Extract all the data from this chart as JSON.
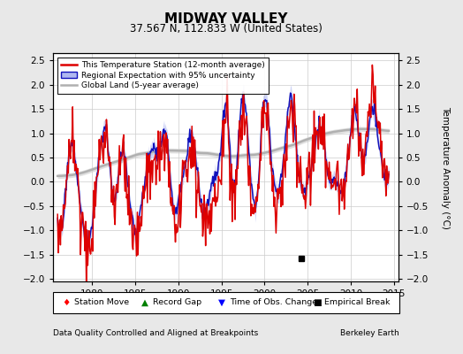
{
  "title": "MIDWAY VALLEY",
  "subtitle": "37.567 N, 112.833 W (United States)",
  "ylabel": "Temperature Anomaly (°C)",
  "xlim": [
    1975.5,
    2015.5
  ],
  "ylim": [
    -2.05,
    2.65
  ],
  "yticks": [
    -2,
    -1.5,
    -1,
    -0.5,
    0,
    0.5,
    1,
    1.5,
    2,
    2.5
  ],
  "xticks": [
    1980,
    1985,
    1990,
    1995,
    2000,
    2005,
    2010,
    2015
  ],
  "footer_left": "Data Quality Controlled and Aligned at Breakpoints",
  "footer_right": "Berkeley Earth",
  "legend_entries": [
    "This Temperature Station (12-month average)",
    "Regional Expectation with 95% uncertainty",
    "Global Land (5-year average)"
  ],
  "background_color": "#e8e8e8",
  "plot_bg_color": "#ffffff",
  "red_color": "#dd0000",
  "blue_color": "#1111bb",
  "blue_fill_color": "#b0b8f0",
  "gray_color": "#b0b0b0",
  "gray_fill_color": "#cccccc",
  "empirical_break_x": 2004.3,
  "empirical_break_y": -1.58
}
